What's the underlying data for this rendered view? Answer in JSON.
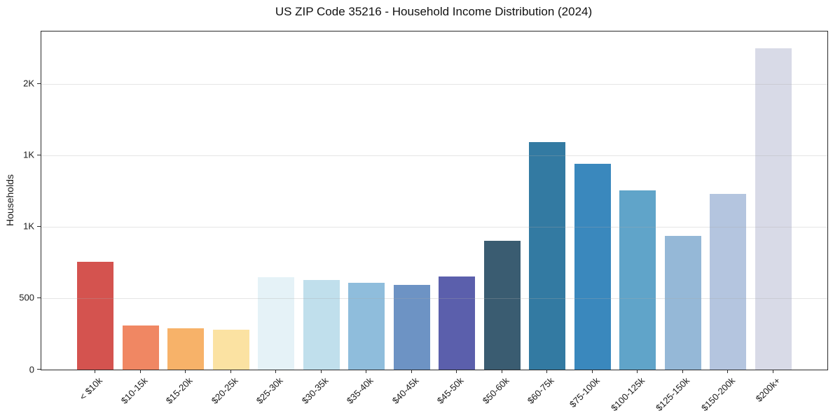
{
  "figure": {
    "title": "US ZIP Code 35216 - Household Income Distribution (2024)",
    "ylabel": "Households"
  },
  "chart_data": {
    "type": "bar",
    "title": "US ZIP Code 35216 - Household Income Distribution (2024)",
    "xlabel": "",
    "ylabel": "Households",
    "categories": [
      "< $10k",
      "$10-15k",
      "$15-20k",
      "$20-25k",
      "$25-30k",
      "$30-35k",
      "$35-40k",
      "$40-45k",
      "$45-50k",
      "$50-60k",
      "$60-75k",
      "$75-100k",
      "$100-125k",
      "$125-150k",
      "$150-200k",
      "$200k+"
    ],
    "values": [
      755,
      310,
      287,
      280,
      645,
      628,
      607,
      592,
      650,
      903,
      1590,
      1440,
      1255,
      936,
      1230,
      2250
    ],
    "bar_colors": [
      "#d4534f",
      "#f08763",
      "#f7b269",
      "#fbe2a2",
      "#e5f2f7",
      "#c0dfec",
      "#8fbddc",
      "#6d93c4",
      "#5b5fac",
      "#3a5c71",
      "#337aa2",
      "#3a88bd",
      "#60a4c9",
      "#95b8d7",
      "#b4c5df",
      "#d8dae7"
    ],
    "ylim": [
      0,
      2365
    ],
    "yticks": [
      {
        "value": 0,
        "label": "0"
      },
      {
        "value": 500,
        "label": "500"
      },
      {
        "value": 1000,
        "label": "1K"
      },
      {
        "value": 1500,
        "label": "1K"
      },
      {
        "value": 2000,
        "label": "2K"
      }
    ],
    "grid": true,
    "gridlines_above_bars": true,
    "legend": false
  }
}
